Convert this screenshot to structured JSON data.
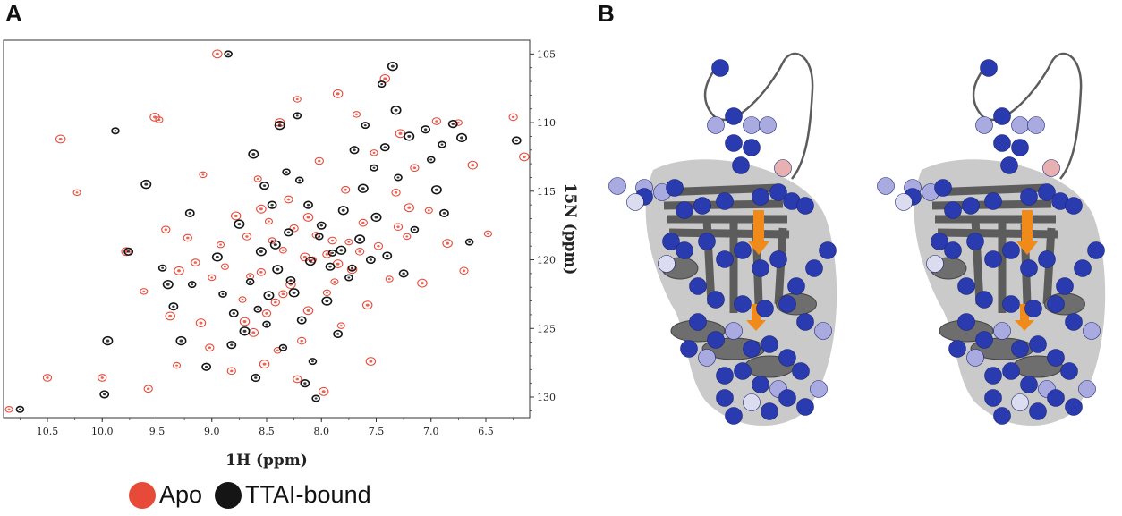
{
  "panels": {
    "a_letter": "A",
    "b_letter": "B"
  },
  "chart_data": {
    "type": "scatter",
    "title": "",
    "xlabel": "1H (ppm)",
    "ylabel": "15N (ppm)",
    "xlim": [
      10.9,
      6.1
    ],
    "ylim": [
      104,
      131.5
    ],
    "x_reversed": true,
    "y_reversed": true,
    "x_ticks": [
      10.5,
      10.0,
      9.5,
      9.0,
      8.5,
      8.0,
      7.5,
      7.0,
      6.5
    ],
    "x_tick_labels": [
      "10.5",
      "10.0",
      "9.5",
      "9.0",
      "8.5",
      "8.0",
      "7.5",
      "7.0",
      "6.5"
    ],
    "y_ticks": [
      105,
      110,
      115,
      120,
      125,
      130
    ],
    "y_tick_labels": [
      "105",
      "110",
      "115",
      "120",
      "125",
      "130"
    ],
    "grid": false,
    "legend_position": "bottom",
    "series": [
      {
        "name": "Apo",
        "color": "#e84a3a",
        "points": [
          [
            10.85,
            130.9
          ],
          [
            10.5,
            128.6
          ],
          [
            10.38,
            111.2
          ],
          [
            10.23,
            115.1
          ],
          [
            10.0,
            128.6
          ],
          [
            9.78,
            119.4
          ],
          [
            9.62,
            122.3
          ],
          [
            9.58,
            129.4
          ],
          [
            9.52,
            109.6
          ],
          [
            9.48,
            109.8
          ],
          [
            9.42,
            117.8
          ],
          [
            9.38,
            124.1
          ],
          [
            9.32,
            127.7
          ],
          [
            9.22,
            118.4
          ],
          [
            9.1,
            124.6
          ],
          [
            9.08,
            113.8
          ],
          [
            9.02,
            126.4
          ],
          [
            8.95,
            105.0
          ],
          [
            8.88,
            120.5
          ],
          [
            8.82,
            128.1
          ],
          [
            8.78,
            116.8
          ],
          [
            8.72,
            122.9
          ],
          [
            8.68,
            118.3
          ],
          [
            8.62,
            125.3
          ],
          [
            8.58,
            114.1
          ],
          [
            8.55,
            120.9
          ],
          [
            8.52,
            127.6
          ],
          [
            8.48,
            117.2
          ],
          [
            8.42,
            123.1
          ],
          [
            8.38,
            110.0
          ],
          [
            8.35,
            119.3
          ],
          [
            8.3,
            115.6
          ],
          [
            8.28,
            121.8
          ],
          [
            8.22,
            108.3
          ],
          [
            8.18,
            125.9
          ],
          [
            8.12,
            116.9
          ],
          [
            8.08,
            120.0
          ],
          [
            8.02,
            112.8
          ],
          [
            7.98,
            129.6
          ],
          [
            7.95,
            122.4
          ],
          [
            7.9,
            118.6
          ],
          [
            7.85,
            107.9
          ],
          [
            7.82,
            124.8
          ],
          [
            7.78,
            114.9
          ],
          [
            7.72,
            120.7
          ],
          [
            7.68,
            109.4
          ],
          [
            7.62,
            117.3
          ],
          [
            7.58,
            123.3
          ],
          [
            7.52,
            112.2
          ],
          [
            7.48,
            119.0
          ],
          [
            7.42,
            106.8
          ],
          [
            7.38,
            121.4
          ],
          [
            7.32,
            115.1
          ],
          [
            7.28,
            110.8
          ],
          [
            7.22,
            118.3
          ],
          [
            7.15,
            113.3
          ],
          [
            7.08,
            121.7
          ],
          [
            7.02,
            116.4
          ],
          [
            6.95,
            109.9
          ],
          [
            6.85,
            118.8
          ],
          [
            6.75,
            110.0
          ],
          [
            6.7,
            120.8
          ],
          [
            6.62,
            113.1
          ],
          [
            6.48,
            118.1
          ],
          [
            6.25,
            109.6
          ],
          [
            6.15,
            112.5
          ],
          [
            8.45,
            118.6
          ],
          [
            8.25,
            117.7
          ],
          [
            8.15,
            119.8
          ],
          [
            8.05,
            118.2
          ],
          [
            7.95,
            119.6
          ],
          [
            7.85,
            120.3
          ],
          [
            7.75,
            118.7
          ],
          [
            7.65,
            119.4
          ],
          [
            8.55,
            116.3
          ],
          [
            8.65,
            121.2
          ],
          [
            8.35,
            122.5
          ],
          [
            8.12,
            123.7
          ],
          [
            7.88,
            121.6
          ],
          [
            8.5,
            123.9
          ],
          [
            8.7,
            124.5
          ],
          [
            8.4,
            126.6
          ],
          [
            8.22,
            128.7
          ],
          [
            7.55,
            127.4
          ],
          [
            9.0,
            121.3
          ],
          [
            9.15,
            120.2
          ],
          [
            9.3,
            120.8
          ],
          [
            8.92,
            118.9
          ],
          [
            7.3,
            117.6
          ],
          [
            7.2,
            116.2
          ]
        ]
      },
      {
        "name": "TTAI-bound",
        "color": "#151515",
        "points": [
          [
            10.75,
            130.9
          ],
          [
            9.98,
            129.8
          ],
          [
            9.95,
            125.9
          ],
          [
            9.88,
            110.6
          ],
          [
            9.76,
            119.4
          ],
          [
            9.6,
            114.5
          ],
          [
            9.45,
            120.6
          ],
          [
            9.35,
            123.4
          ],
          [
            9.28,
            125.9
          ],
          [
            9.18,
            121.8
          ],
          [
            9.05,
            127.8
          ],
          [
            8.95,
            119.8
          ],
          [
            8.85,
            105.0
          ],
          [
            8.8,
            123.9
          ],
          [
            8.75,
            117.4
          ],
          [
            8.65,
            121.6
          ],
          [
            8.6,
            128.6
          ],
          [
            8.55,
            119.4
          ],
          [
            8.5,
            124.7
          ],
          [
            8.45,
            116.0
          ],
          [
            8.4,
            120.7
          ],
          [
            8.35,
            126.4
          ],
          [
            8.3,
            118.0
          ],
          [
            8.25,
            122.4
          ],
          [
            8.2,
            114.2
          ],
          [
            8.15,
            129.0
          ],
          [
            8.1,
            120.1
          ],
          [
            8.05,
            130.1
          ],
          [
            8.0,
            117.5
          ],
          [
            7.95,
            123.0
          ],
          [
            7.9,
            119.5
          ],
          [
            7.85,
            125.4
          ],
          [
            7.8,
            116.4
          ],
          [
            7.75,
            121.3
          ],
          [
            7.7,
            112.0
          ],
          [
            7.65,
            118.5
          ],
          [
            7.6,
            110.2
          ],
          [
            7.55,
            120.0
          ],
          [
            7.5,
            116.9
          ],
          [
            7.45,
            107.2
          ],
          [
            7.4,
            119.7
          ],
          [
            7.35,
            105.9
          ],
          [
            7.3,
            114.0
          ],
          [
            7.25,
            121.0
          ],
          [
            7.2,
            111.0
          ],
          [
            7.15,
            117.8
          ],
          [
            7.05,
            110.5
          ],
          [
            6.95,
            114.9
          ],
          [
            6.9,
            111.6
          ],
          [
            6.8,
            110.1
          ],
          [
            6.72,
            111.1
          ],
          [
            6.65,
            118.7
          ],
          [
            6.22,
            111.3
          ],
          [
            8.38,
            110.2
          ],
          [
            8.22,
            109.5
          ],
          [
            8.52,
            114.6
          ],
          [
            8.62,
            112.3
          ],
          [
            8.32,
            113.6
          ],
          [
            8.12,
            116.0
          ],
          [
            8.42,
            118.9
          ],
          [
            8.02,
            118.3
          ],
          [
            7.92,
            120.5
          ],
          [
            7.82,
            119.3
          ],
          [
            7.72,
            120.6
          ],
          [
            8.28,
            121.5
          ],
          [
            8.48,
            122.6
          ],
          [
            8.58,
            123.6
          ],
          [
            8.18,
            124.4
          ],
          [
            8.7,
            125.2
          ],
          [
            8.08,
            127.4
          ],
          [
            9.2,
            116.6
          ],
          [
            9.4,
            121.8
          ],
          [
            8.9,
            122.5
          ],
          [
            8.82,
            126.2
          ],
          [
            7.62,
            114.8
          ],
          [
            7.52,
            113.3
          ],
          [
            7.42,
            111.8
          ],
          [
            7.32,
            109.1
          ],
          [
            7.0,
            112.7
          ],
          [
            6.88,
            116.6
          ]
        ]
      }
    ]
  },
  "legend": {
    "items": [
      {
        "label": "Apo",
        "color": "#e84a3a"
      },
      {
        "label": "TTAI-bound",
        "color": "#151515"
      }
    ]
  },
  "structure": {
    "ribbon_color": "#5c5c5c",
    "sphere_color": "#2a3bb0",
    "light_sphere_color": "#a9abe0",
    "highlight_color": "#f08a1a"
  }
}
